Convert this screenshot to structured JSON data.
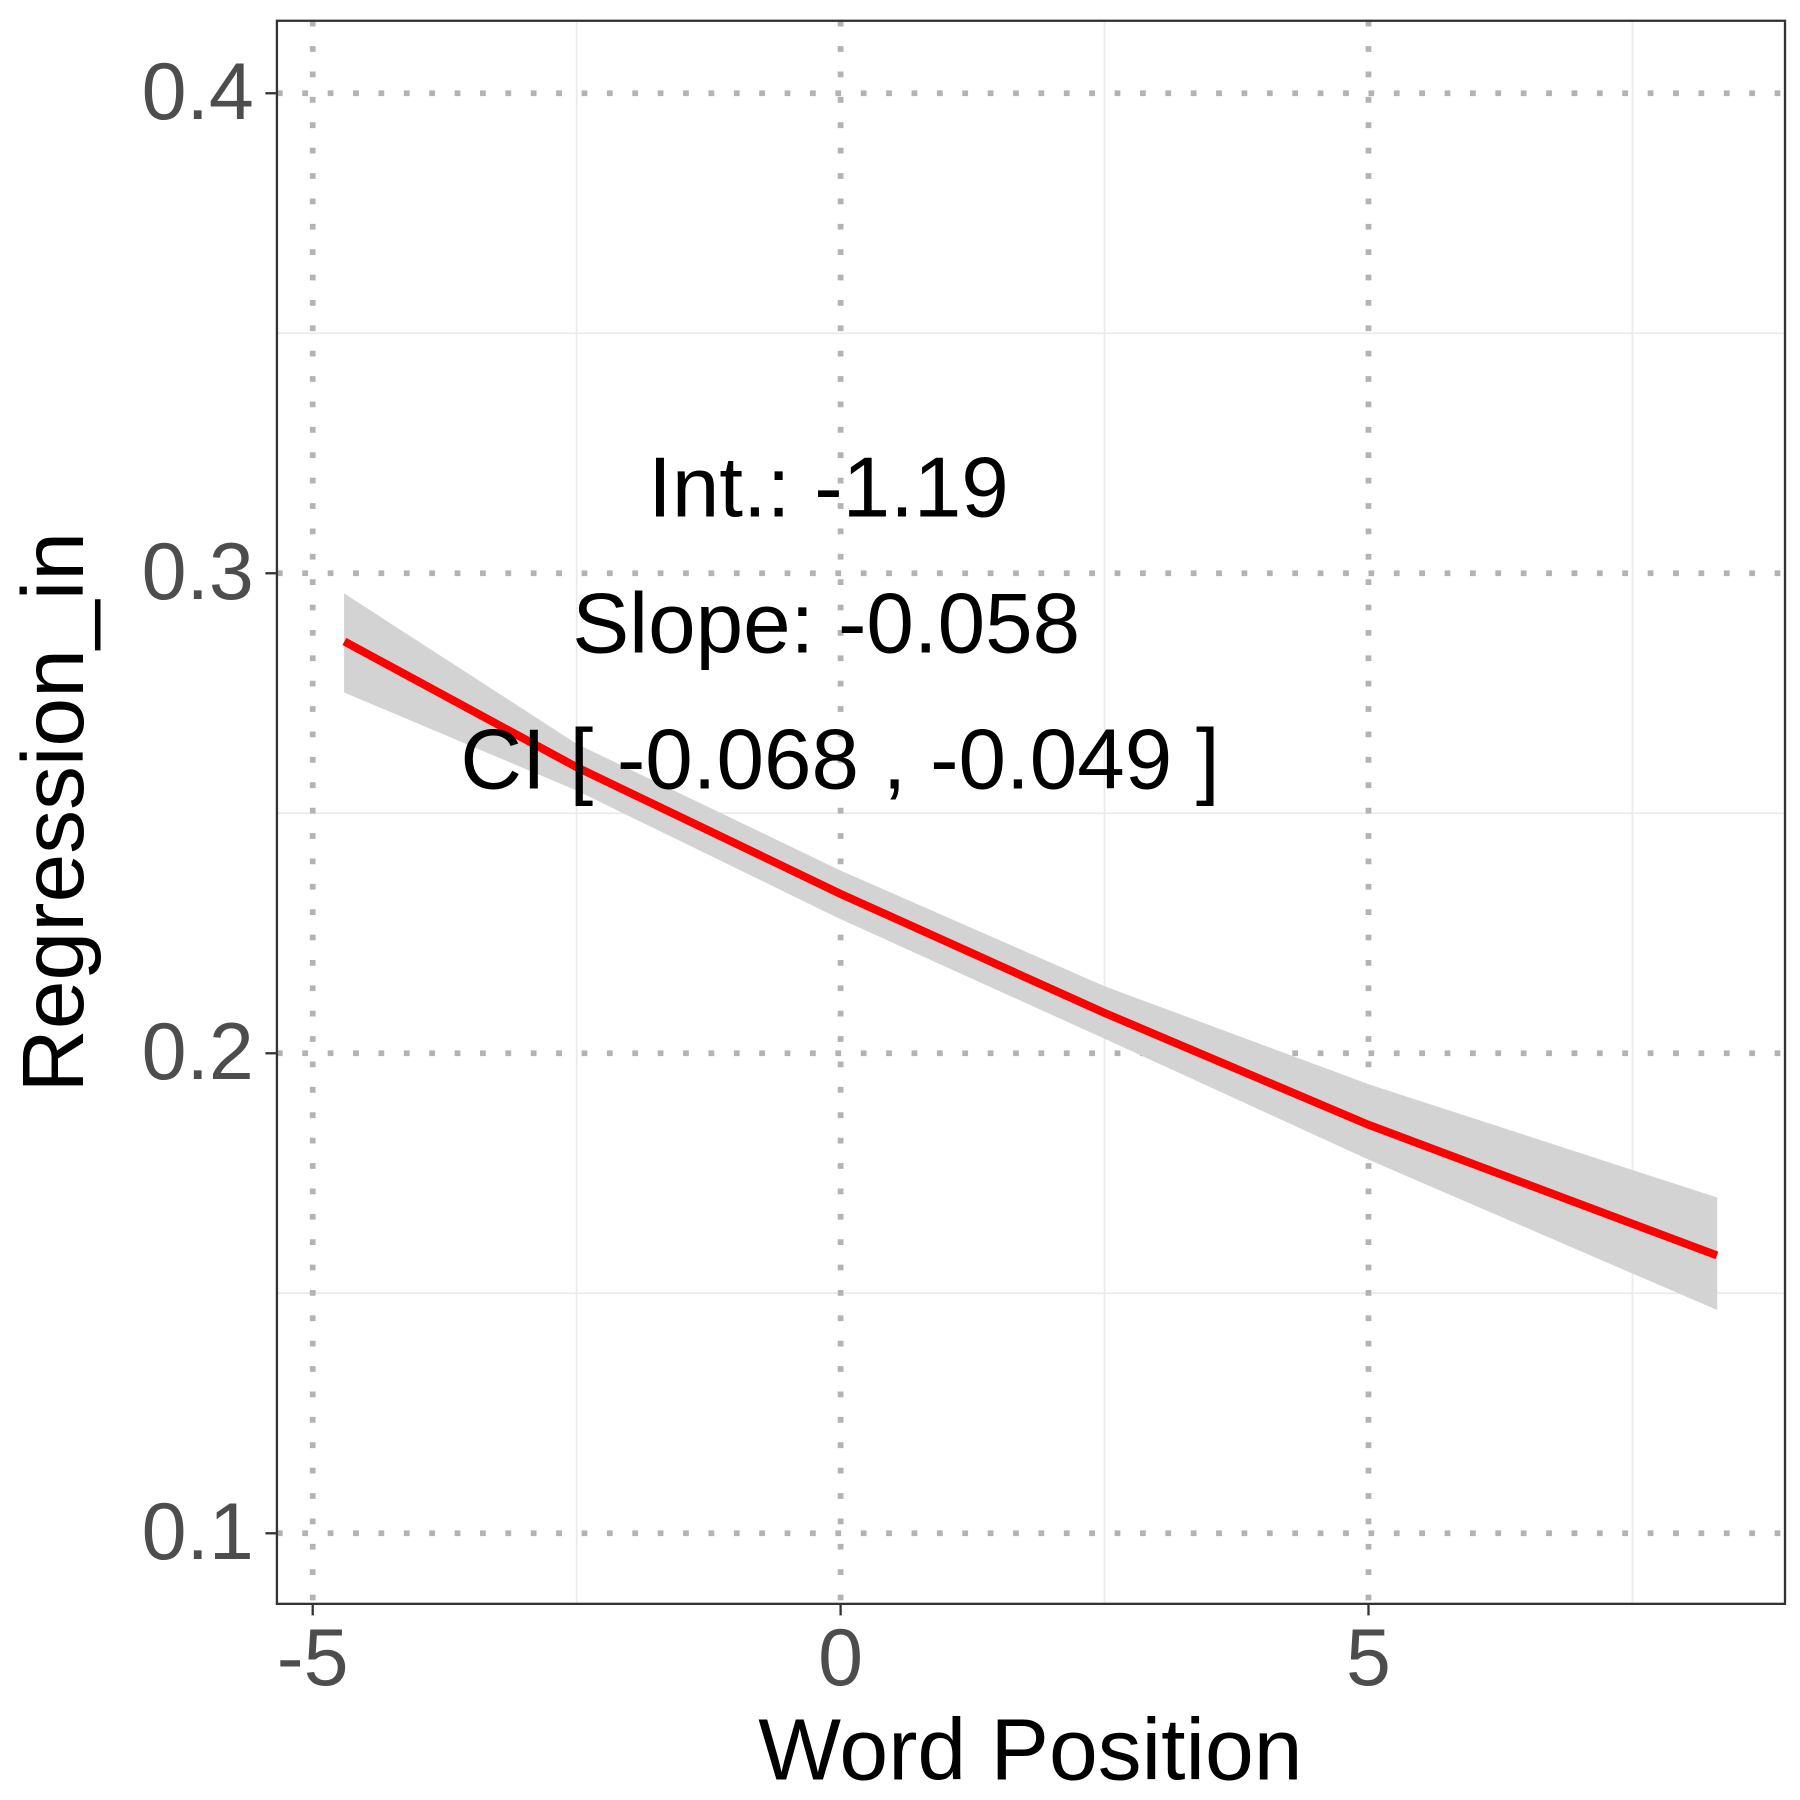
{
  "chart_data": {
    "type": "line",
    "x_label": "Word Position",
    "y_label": "Regression_in",
    "annotations": [
      "Int.: -1.19",
      "Slope: -0.058",
      "CI [ -0.068 , -0.049 ]"
    ],
    "x": [
      -4.7,
      -2.5,
      0,
      2.5,
      5,
      8.3
    ],
    "series": [
      {
        "color": "#ff0000",
        "band_color": "#d3d3d3",
        "values": [
          0.2858,
          0.2596,
          0.2332,
          0.2084,
          0.1851,
          0.1579
        ],
        "lower": [
          0.2752,
          0.2548,
          0.228,
          0.2031,
          0.1779,
          0.1466
        ],
        "upper": [
          0.2957,
          0.2644,
          0.238,
          0.2139,
          0.1935,
          0.1699
        ]
      }
    ],
    "xlim": [
      -5.339,
      8.945
    ],
    "ylim": [
      0.0853,
      0.4151
    ],
    "xticks": [
      -5,
      0,
      5
    ],
    "yticks": [
      0.1,
      0.2,
      0.3,
      0.4
    ],
    "minor_xticks": [
      -2.5,
      2.5,
      7.5
    ],
    "minor_yticks": [
      0.15,
      0.25,
      0.35
    ],
    "grid": true
  }
}
